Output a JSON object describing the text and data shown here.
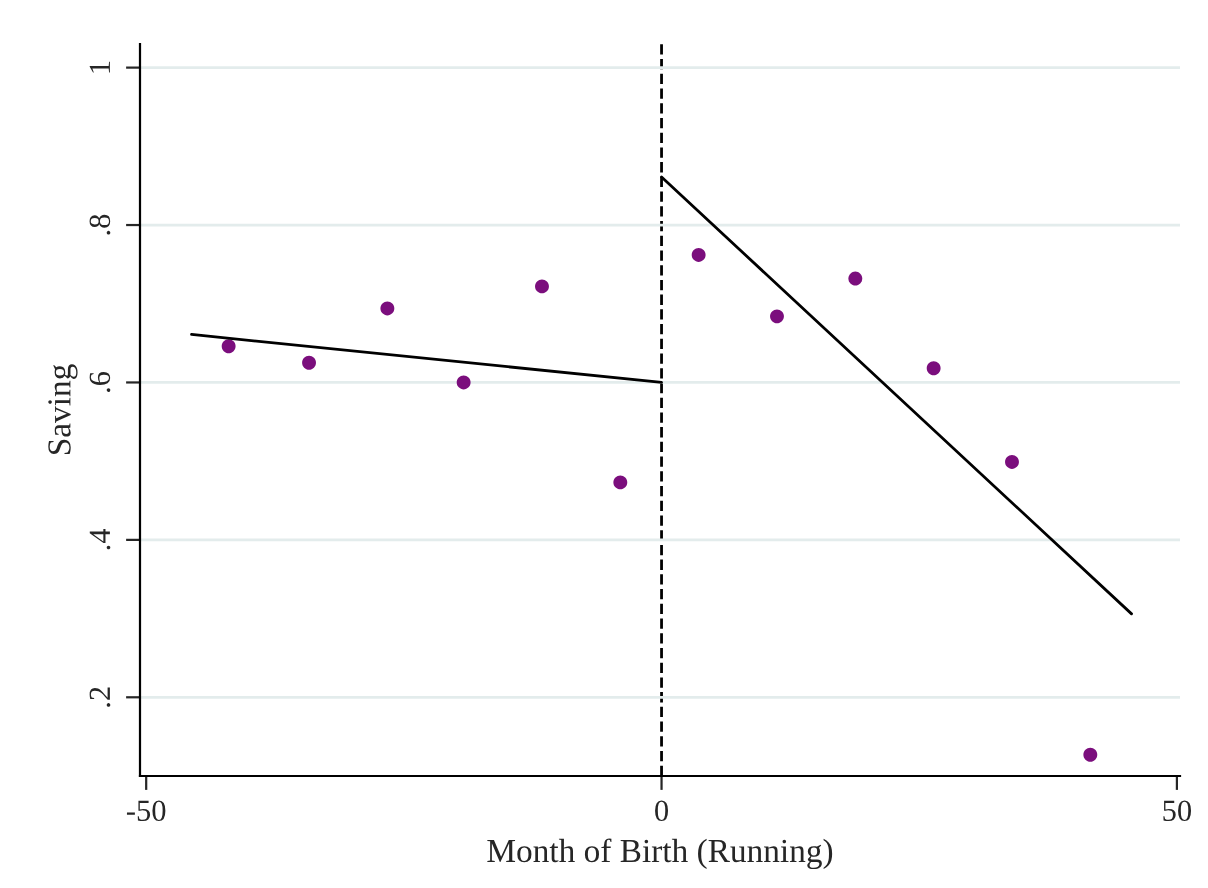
{
  "chart_data": {
    "type": "scatter",
    "xlabel": "Month of Birth (Running)",
    "ylabel": "Saving",
    "xlim": [
      -50.6,
      50.3
    ],
    "xticks": [
      -50,
      0,
      50
    ],
    "ylim": [
      0.1,
      1.03
    ],
    "yticks": [
      {
        "value": 0.2,
        "label": ".2"
      },
      {
        "value": 0.4,
        "label": ".4"
      },
      {
        "value": 0.6,
        "label": ".6"
      },
      {
        "value": 0.8,
        "label": ".8"
      },
      {
        "value": 1,
        "label": "1"
      }
    ],
    "grid": "y",
    "legend": false,
    "ref_lines": [
      {
        "axis": "x",
        "value": 0,
        "color": "#000000",
        "line_style": "dashed"
      }
    ],
    "series": [
      {
        "marker": "circle",
        "color": "#7b0e7d",
        "x": [
          -42.0,
          -34.2,
          -26.6,
          -19.2,
          -11.6,
          -4.0,
          3.6,
          11.2,
          18.8,
          26.4,
          34.0,
          41.6
        ],
        "values": [
          0.646,
          0.625,
          0.694,
          0.6,
          0.722,
          0.473,
          0.762,
          0.684,
          0.732,
          0.618,
          0.499,
          0.127
        ]
      },
      {
        "type": "line",
        "color": "#000000",
        "x": [
          -45.6,
          0
        ],
        "values": [
          0.661,
          0.6
        ]
      },
      {
        "type": "line",
        "color": "#000000",
        "x": [
          0,
          45.6
        ],
        "values": [
          0.861,
          0.306
        ]
      }
    ]
  }
}
